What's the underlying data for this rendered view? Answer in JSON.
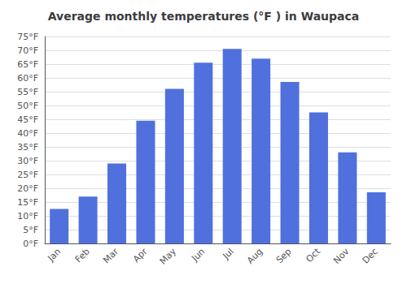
{
  "chart_data": {
    "type": "bar",
    "title": "Average monthly temperatures (°F ) in Waupaca",
    "categories": [
      "Jan",
      "Feb",
      "Mar",
      "Apr",
      "May",
      "Jun",
      "Jul",
      "Aug",
      "Sep",
      "Oct",
      "Nov",
      "Dec"
    ],
    "values": [
      12.5,
      17.0,
      29.0,
      44.5,
      56.0,
      65.5,
      70.5,
      67.0,
      58.5,
      47.5,
      33.0,
      18.5
    ],
    "ylim": [
      0,
      75
    ],
    "yticks": [
      {
        "value": 0,
        "label": "0°F"
      },
      {
        "value": 5,
        "label": "5°F"
      },
      {
        "value": 10,
        "label": "10°F"
      },
      {
        "value": 15,
        "label": "15°F"
      },
      {
        "value": 20,
        "label": "20°F"
      },
      {
        "value": 25,
        "label": "25°F"
      },
      {
        "value": 30,
        "label": "30°F"
      },
      {
        "value": 35,
        "label": "35°F"
      },
      {
        "value": 40,
        "label": "40°F"
      },
      {
        "value": 45,
        "label": "45°F"
      },
      {
        "value": 50,
        "label": "50°F"
      },
      {
        "value": 55,
        "label": "55°F"
      },
      {
        "value": 60,
        "label": "60°F"
      },
      {
        "value": 65,
        "label": "65°F"
      },
      {
        "value": 70,
        "label": "70°F"
      },
      {
        "value": 75,
        "label": "75°F"
      }
    ],
    "grid": true
  }
}
